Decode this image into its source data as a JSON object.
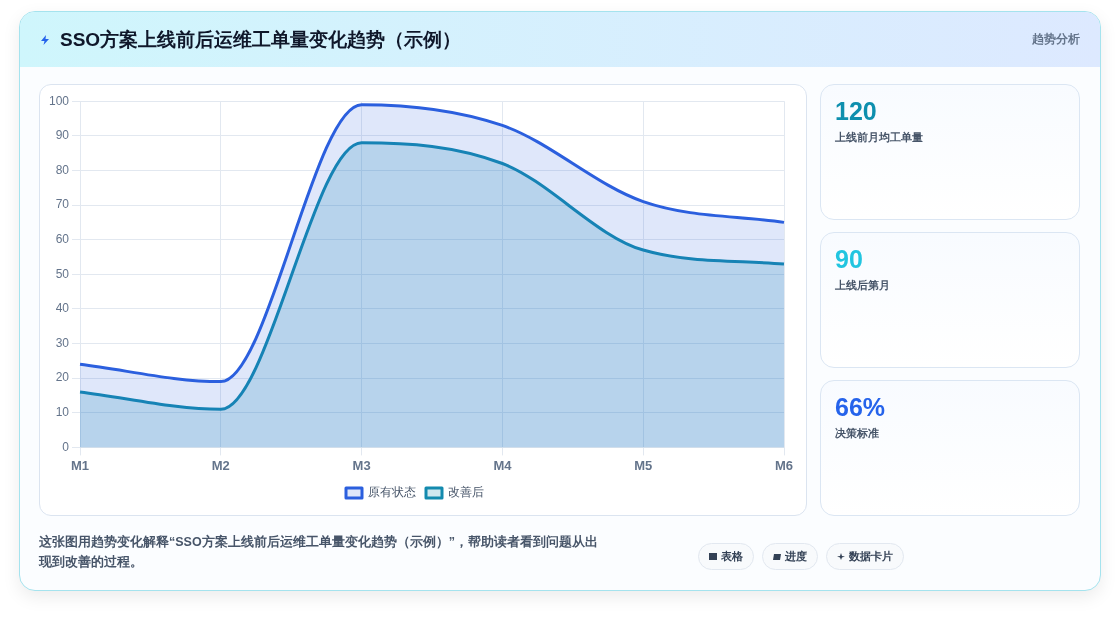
{
  "chart_data": [
    {
      "type": "area",
      "title": "SSO方案上线前后运维工单量变化趋势（示例）",
      "categories": [
        "M1",
        "M2",
        "M3",
        "M4",
        "M5",
        "M6"
      ],
      "series": [
        {
          "name": "原有状态",
          "color": "#2b5fde",
          "values": [
            24,
            19,
            99,
            93,
            71,
            65
          ]
        },
        {
          "name": "改善后",
          "color": "#138aae",
          "values": [
            16,
            11,
            88,
            82,
            57,
            53
          ]
        }
      ],
      "ylim": [
        0,
        100
      ],
      "yticks": [
        0,
        10,
        20,
        30,
        40,
        50,
        60,
        70,
        80,
        90,
        100
      ],
      "grid": true,
      "legend": "bottom",
      "marker": "none",
      "annotations": [
        "这张图用趋势变化解释“SSO方案上线前后运维工单量变化趋势（示例）”，帮助读者看到问题从出现到改善的过程。",
        "表格",
        "进度",
        "数据卡片"
      ]
    },
    {
      "type": "other",
      "title": "趋势分析",
      "annotations": [
        "120",
        "上线前月均工单量",
        "90",
        "上线后第月",
        "66%",
        "决策标准"
      ]
    }
  ]
}
